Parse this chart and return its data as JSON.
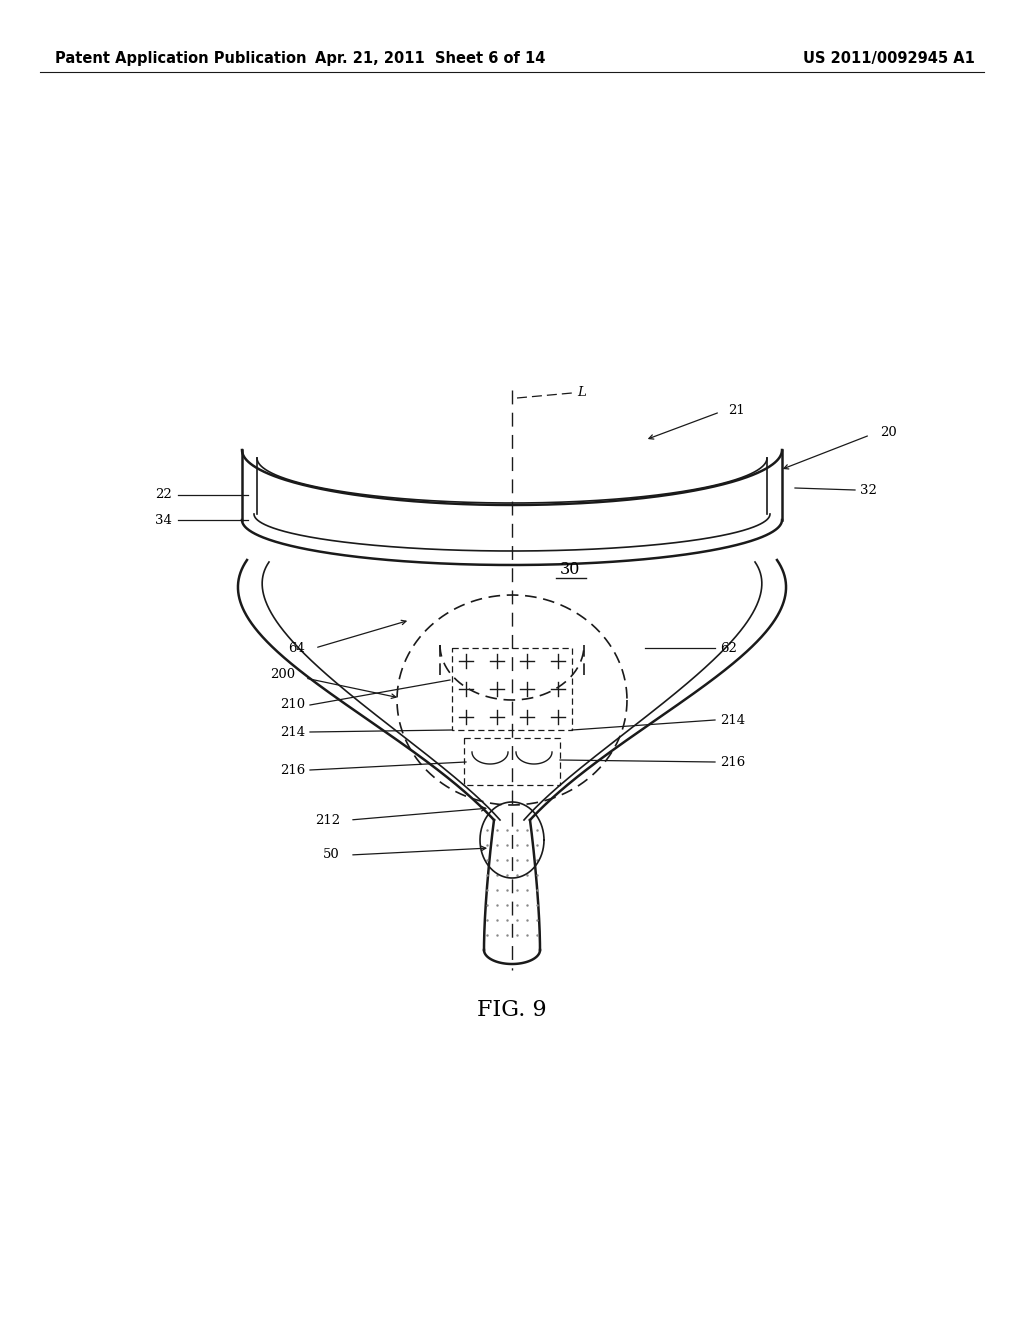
{
  "bg_color": "#ffffff",
  "header_left": "Patent Application Publication",
  "header_mid": "Apr. 21, 2011  Sheet 6 of 14",
  "header_right": "US 2011/0092945 A1",
  "fig_label": "FIG. 9",
  "header_fontsize": 10.5,
  "label_fontsize": 9.5,
  "fig_fontsize": 16
}
